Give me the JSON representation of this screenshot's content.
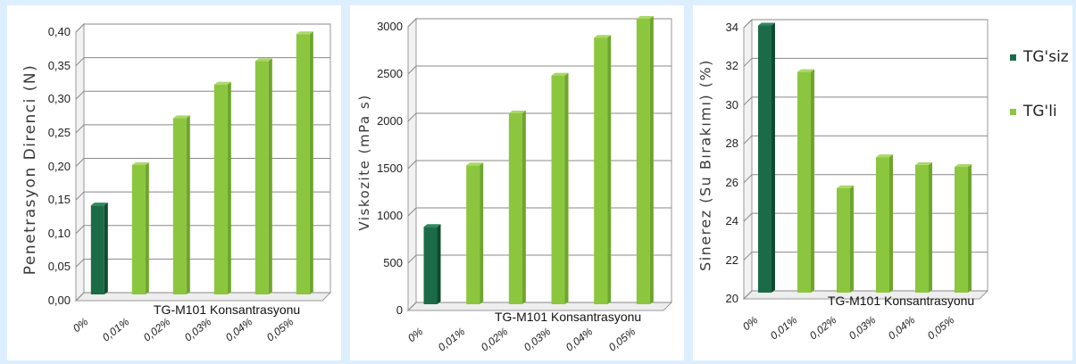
{
  "chart_data": [
    {
      "type": "bar",
      "ylabel": "Penetrasyon Direnci (N)",
      "xlabel": "TG-M101 Konsantrasyonu",
      "categories": [
        "0%",
        "0,01%",
        "0,02%",
        "0,03%",
        "0,04%",
        "0,05%"
      ],
      "values": [
        0.13,
        0.19,
        0.26,
        0.31,
        0.345,
        0.385
      ],
      "ylim": [
        0,
        0.4
      ],
      "yticks": [
        "0,00",
        "0,05",
        "0,10",
        "0,15",
        "0,20",
        "0,25",
        "0,30",
        "0,35",
        "0,40"
      ],
      "grid": true
    },
    {
      "type": "bar",
      "ylabel": "Viskozite (mPa s)",
      "xlabel": "TG-M101 Konsantrasyonu",
      "categories": [
        "0%",
        "0,01%",
        "0,02%",
        "0,03%",
        "0,04%",
        "0,05%"
      ],
      "values": [
        800,
        1450,
        2000,
        2400,
        2800,
        3000
      ],
      "ylim": [
        0,
        3000
      ],
      "yticks": [
        "0",
        "500",
        "1000",
        "1500",
        "2000",
        "2500",
        "3000"
      ],
      "grid": true
    },
    {
      "type": "bar",
      "ylabel": "Sinerez (Su Bırakımı) (%)",
      "xlabel": "TG-M101 Konsantrasyonu",
      "categories": [
        "0%",
        "0,01%",
        "0,02%",
        "0,03%",
        "0,04%",
        "0,05%"
      ],
      "values": [
        33.7,
        31.3,
        25.3,
        26.9,
        26.5,
        26.4
      ],
      "ylim": [
        20,
        34
      ],
      "yticks": [
        "20",
        "22",
        "24",
        "26",
        "28",
        "30",
        "32",
        "34"
      ],
      "grid": true
    }
  ],
  "legend": {
    "items": [
      {
        "label": "TG'siz",
        "color": "#1c6b48"
      },
      {
        "label": "TG'li",
        "color": "#8cc63f"
      }
    ]
  },
  "colors": {
    "dark": "#1c6b48",
    "light": "#8cc63f"
  }
}
